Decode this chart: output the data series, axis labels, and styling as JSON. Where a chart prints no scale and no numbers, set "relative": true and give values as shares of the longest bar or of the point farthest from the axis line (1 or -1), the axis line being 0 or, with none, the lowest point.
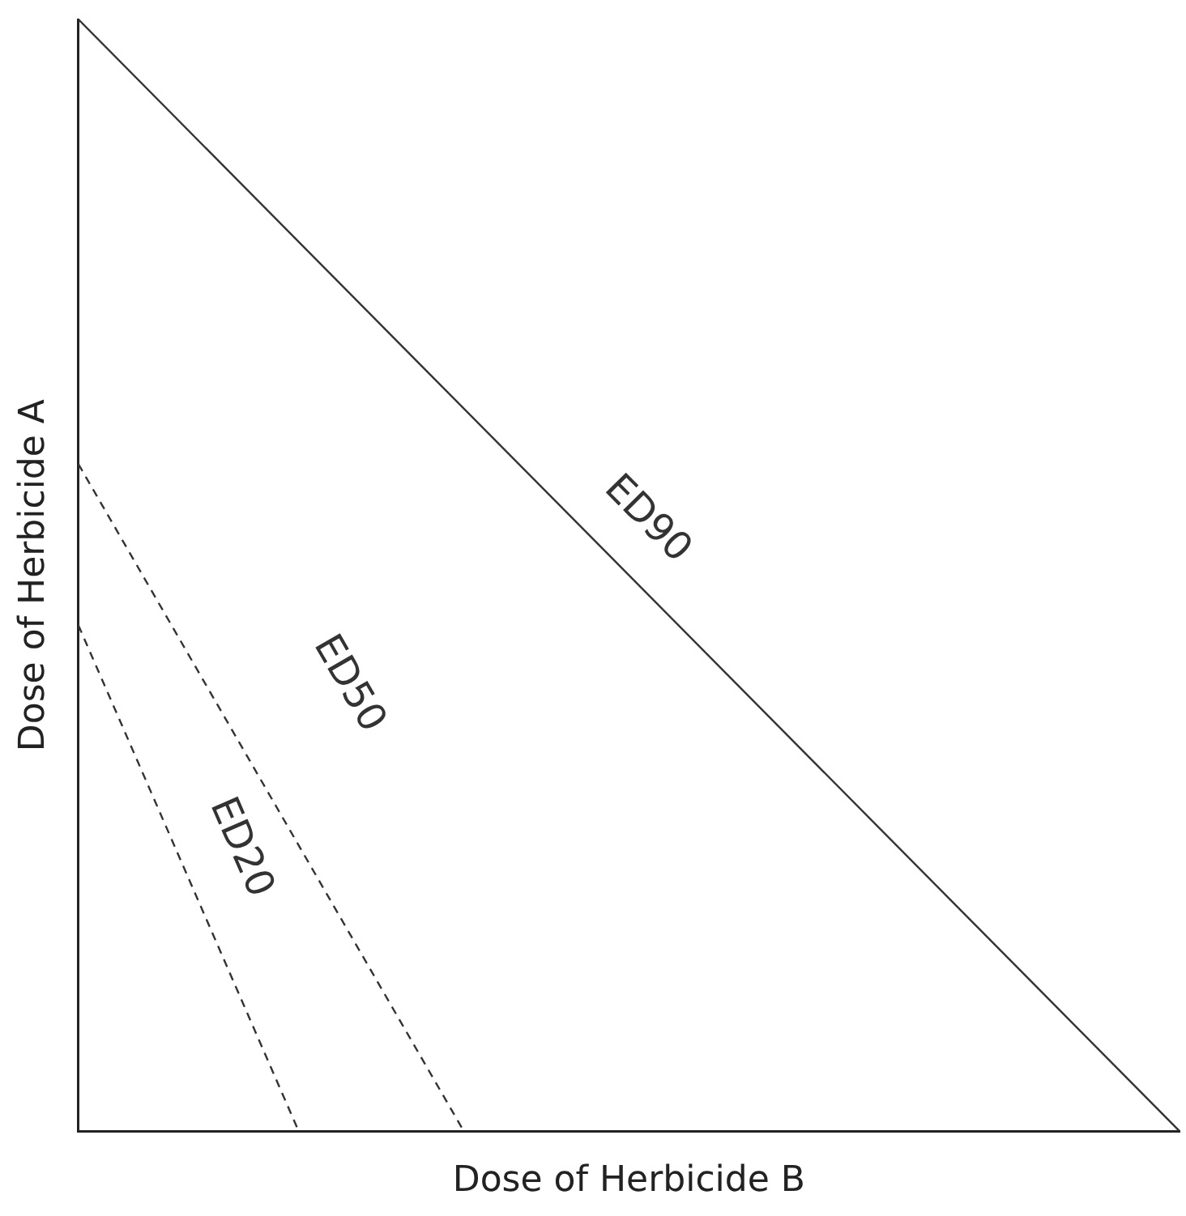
{
  "chart_data": {
    "type": "line",
    "xlabel": "Dose of Herbicide B",
    "ylabel": "Dose of Herbicide A",
    "relative": true,
    "grid": false,
    "legend": false,
    "marker": "none",
    "categories": [
      null,
      null,
      null,
      null,
      null,
      null,
      null,
      null,
      null,
      null,
      null,
      null,
      null,
      null,
      null,
      null,
      null,
      null,
      null,
      null,
      null
    ],
    "series": [
      {
        "name": "ED90",
        "color": "#333333",
        "line_style": "solid",
        "values": [
          1,
          null,
          null,
          null,
          null,
          null,
          null,
          null,
          null,
          null,
          null,
          null,
          null,
          null,
          null,
          null,
          null,
          null,
          null,
          null,
          0
        ]
      },
      {
        "name": "ED50",
        "color": "#333333",
        "line_style": "dashed",
        "values": [
          0.6,
          null,
          null,
          null,
          null,
          null,
          null,
          0,
          null,
          null,
          null,
          null,
          null,
          null,
          null,
          null,
          null,
          null,
          null,
          null,
          null
        ]
      },
      {
        "name": "ED20",
        "color": "#333333",
        "line_style": "dashed",
        "values": [
          0.455,
          null,
          null,
          null,
          0,
          null,
          null,
          null,
          null,
          null,
          null,
          null,
          null,
          null,
          null,
          null,
          null,
          null,
          null,
          null,
          null
        ]
      }
    ]
  }
}
